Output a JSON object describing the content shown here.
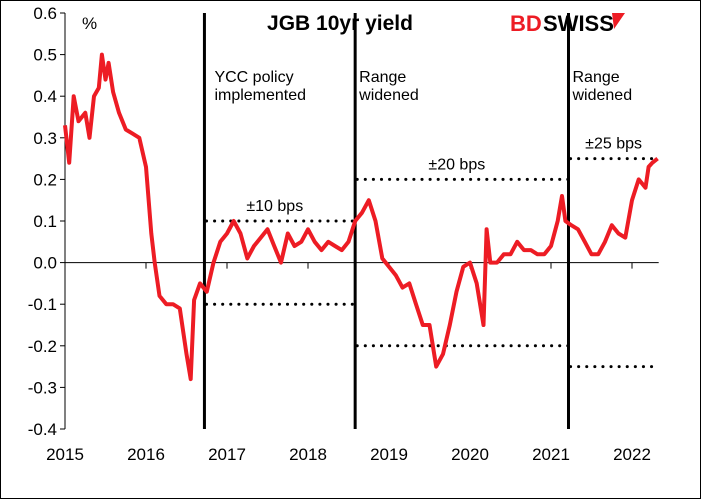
{
  "chart_data": {
    "type": "line",
    "title": "JGB 10yr yield",
    "ylabel": "%",
    "xlabel": "",
    "ylim": [
      -0.4,
      0.6
    ],
    "xlim": [
      "2015-01-01",
      "2022-04-30"
    ],
    "yticks": [
      "0.6",
      "0.5",
      "0.4",
      "0.3",
      "0.2",
      "0.1",
      "0.0",
      "-0.1",
      "-0.2",
      "-0.3",
      "-0.4"
    ],
    "xticks": [
      "2015",
      "2016",
      "2017",
      "2018",
      "2019",
      "2020",
      "2021",
      "2022"
    ],
    "grid": false,
    "legend": "none",
    "series": [
      {
        "color": "#ed1c24",
        "x": [
          "2015-01-01",
          "2015-01-20",
          "2015-02-10",
          "2015-03-01",
          "2015-04-01",
          "2015-04-20",
          "2015-05-10",
          "2015-06-01",
          "2015-06-15",
          "2015-07-01",
          "2015-07-15",
          "2015-08-05",
          "2015-09-01",
          "2015-10-01",
          "2015-11-01",
          "2015-12-01",
          "2016-01-01",
          "2016-01-25",
          "2016-02-10",
          "2016-03-01",
          "2016-04-01",
          "2016-05-01",
          "2016-06-01",
          "2016-07-01",
          "2016-07-20",
          "2016-08-05",
          "2016-09-01",
          "2016-10-01",
          "2016-11-01",
          "2016-12-01",
          "2017-01-01",
          "2017-02-01",
          "2017-03-01",
          "2017-04-01",
          "2017-05-01",
          "2017-06-01",
          "2017-07-01",
          "2017-08-01",
          "2017-09-01",
          "2017-10-01",
          "2017-11-01",
          "2017-12-01",
          "2018-01-01",
          "2018-02-01",
          "2018-03-01",
          "2018-04-01",
          "2018-05-01",
          "2018-06-01",
          "2018-07-01",
          "2018-08-01",
          "2018-09-01",
          "2018-10-01",
          "2018-11-01",
          "2018-12-01",
          "2019-01-01",
          "2019-02-01",
          "2019-03-01",
          "2019-04-01",
          "2019-05-01",
          "2019-06-01",
          "2019-07-01",
          "2019-08-01",
          "2019-09-01",
          "2019-10-01",
          "2019-11-01",
          "2019-12-01",
          "2020-01-01",
          "2020-02-01",
          "2020-03-01",
          "2020-03-15",
          "2020-04-01",
          "2020-05-01",
          "2020-06-01",
          "2020-07-01",
          "2020-08-01",
          "2020-09-01",
          "2020-10-01",
          "2020-11-01",
          "2020-12-01",
          "2021-01-01",
          "2021-02-01",
          "2021-02-20",
          "2021-03-05",
          "2021-04-01",
          "2021-05-01",
          "2021-06-01",
          "2021-07-01",
          "2021-08-01",
          "2021-09-01",
          "2021-10-01",
          "2021-11-01",
          "2021-12-01",
          "2022-01-01",
          "2022-02-01",
          "2022-03-01",
          "2022-03-15",
          "2022-04-01",
          "2022-04-25"
        ],
        "y": [
          0.33,
          0.24,
          0.4,
          0.34,
          0.36,
          0.3,
          0.4,
          0.42,
          0.5,
          0.44,
          0.48,
          0.41,
          0.36,
          0.32,
          0.31,
          0.3,
          0.23,
          0.07,
          0.0,
          -0.08,
          -0.1,
          -0.1,
          -0.11,
          -0.22,
          -0.28,
          -0.09,
          -0.05,
          -0.07,
          0.0,
          0.05,
          0.07,
          0.1,
          0.07,
          0.01,
          0.04,
          0.06,
          0.08,
          0.04,
          0.0,
          0.07,
          0.04,
          0.05,
          0.08,
          0.05,
          0.03,
          0.05,
          0.04,
          0.03,
          0.05,
          0.1,
          0.12,
          0.15,
          0.1,
          0.01,
          -0.01,
          -0.03,
          -0.06,
          -0.05,
          -0.1,
          -0.15,
          -0.15,
          -0.25,
          -0.22,
          -0.15,
          -0.07,
          -0.01,
          0.0,
          -0.05,
          -0.15,
          0.08,
          0.0,
          0.0,
          0.02,
          0.02,
          0.05,
          0.03,
          0.03,
          0.02,
          0.02,
          0.04,
          0.1,
          0.16,
          0.1,
          0.09,
          0.08,
          0.05,
          0.02,
          0.02,
          0.05,
          0.09,
          0.07,
          0.06,
          0.15,
          0.2,
          0.18,
          0.23,
          0.24,
          0.25
        ]
      }
    ],
    "annotations": [
      {
        "date": "2016-09-21",
        "label": "YCC policy\nimplemented",
        "band": 0.1,
        "band_label": "±10 bps",
        "until": "2018-07-31"
      },
      {
        "date": "2018-07-31",
        "label": "Range\nwidened",
        "band": 0.2,
        "band_label": "±20 bps",
        "until": "2021-03-19"
      },
      {
        "date": "2021-03-19",
        "label": "Range\nwidened",
        "band": 0.25,
        "band_label": "±25 bps",
        "until": "2022-04-30"
      }
    ]
  },
  "branding": {
    "logo_text": "BDSWISS",
    "logo_colors": [
      "#ed1c24",
      "#000000"
    ]
  }
}
